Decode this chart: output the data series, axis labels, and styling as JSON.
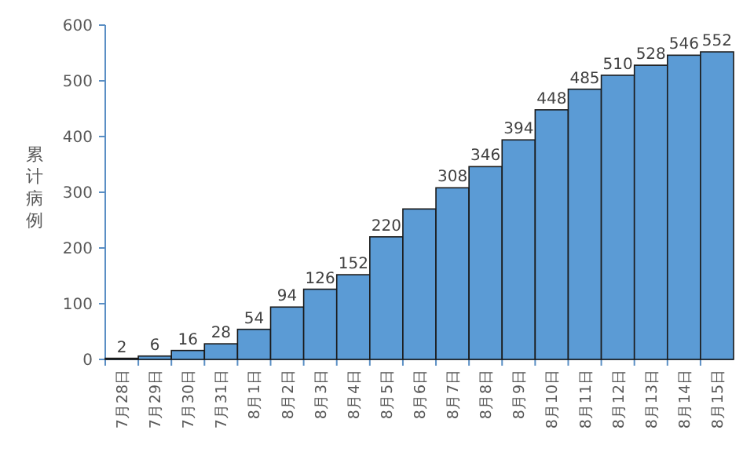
{
  "chart_data": {
    "type": "bar",
    "ylabel": "累计病例",
    "categories": [
      "7月28日",
      "7月29日",
      "7月30日",
      "7月31日",
      "8月1日",
      "8月2日",
      "8月3日",
      "8月4日",
      "8月5日",
      "8月6日",
      "8月7日",
      "8月8日",
      "8月9日",
      "8月10日",
      "8月11日",
      "8月12日",
      "8月13日",
      "8月14日",
      "8月15日"
    ],
    "values": [
      2,
      6,
      16,
      28,
      54,
      94,
      126,
      152,
      220,
      270,
      308,
      346,
      394,
      448,
      485,
      510,
      528,
      546,
      552
    ],
    "value_labels": [
      "2",
      "6",
      "16",
      "28",
      "54",
      "94",
      "126",
      "152",
      "220",
      null,
      "308",
      "346",
      "394",
      "448",
      "485",
      "510",
      "528",
      "546",
      "552"
    ],
    "color": "#5b9bd5",
    "ylim": [
      0,
      600
    ],
    "yticks": [
      0,
      100,
      200,
      300,
      400,
      500,
      600
    ],
    "grid": false
  }
}
